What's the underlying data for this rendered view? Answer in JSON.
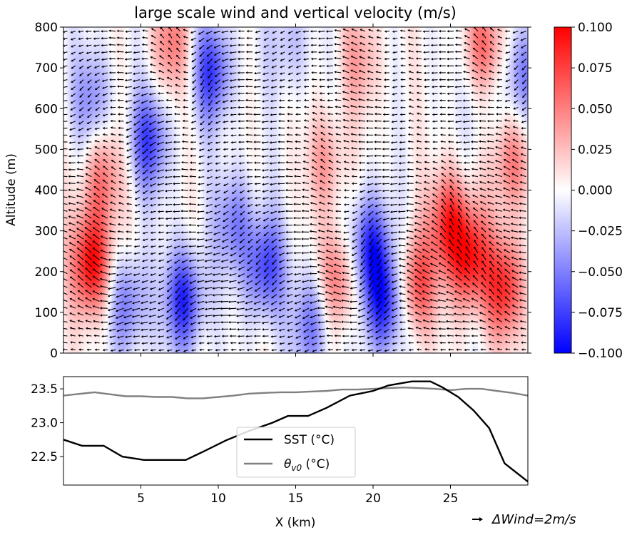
{
  "chart_data": [
    {
      "type": "heatmap",
      "title": "large scale wind and vertical velocity (m/s)",
      "ylabel": "Altitude (m)",
      "xlim": [
        0,
        30
      ],
      "ylim": [
        0,
        800
      ],
      "yticks": [
        0,
        100,
        200,
        300,
        400,
        500,
        600,
        700,
        800
      ],
      "xticks": [
        5,
        10,
        15,
        20,
        25
      ],
      "colorbar": {
        "colormap": "bwr",
        "vmin": -0.1,
        "vmax": 0.1,
        "ticks": [
          "0.100",
          "0.075",
          "0.050",
          "0.025",
          "0.000",
          "−0.025",
          "−0.050",
          "−0.075",
          "−0.100"
        ],
        "colors": {
          "low": "#0000ff",
          "mid": "#ffffff",
          "high": "#ff0000"
        }
      },
      "features": [
        {
          "x": 1.8,
          "z": 220,
          "w": 0.1
        },
        {
          "x": 2.5,
          "z": 430,
          "w": 0.055
        },
        {
          "x": 7.0,
          "z": 760,
          "w": 0.05
        },
        {
          "x": 9.6,
          "z": 690,
          "w": -0.075
        },
        {
          "x": 5.5,
          "z": 520,
          "w": -0.07
        },
        {
          "x": 4.2,
          "z": 120,
          "w": -0.055
        },
        {
          "x": 7.8,
          "z": 130,
          "w": -0.085
        },
        {
          "x": 13.0,
          "z": 210,
          "w": -0.075
        },
        {
          "x": 11.0,
          "z": 320,
          "w": -0.05
        },
        {
          "x": 16.0,
          "z": 70,
          "w": -0.055
        },
        {
          "x": 17.8,
          "z": 180,
          "w": 0.06
        },
        {
          "x": 17.0,
          "z": 470,
          "w": 0.04
        },
        {
          "x": 19.8,
          "z": 260,
          "w": -0.085
        },
        {
          "x": 20.7,
          "z": 120,
          "w": -0.085
        },
        {
          "x": 19.2,
          "z": 720,
          "w": 0.035
        },
        {
          "x": 22.8,
          "z": 170,
          "w": 0.07
        },
        {
          "x": 24.9,
          "z": 320,
          "w": 0.08
        },
        {
          "x": 26.3,
          "z": 230,
          "w": 0.09
        },
        {
          "x": 28.5,
          "z": 160,
          "w": 0.08
        },
        {
          "x": 27.3,
          "z": 750,
          "w": 0.06
        },
        {
          "x": 29.0,
          "z": 470,
          "w": 0.055
        },
        {
          "x": 1.8,
          "z": 620,
          "w": -0.045
        },
        {
          "x": 14.5,
          "z": 760,
          "w": -0.03
        },
        {
          "x": 27.0,
          "z": 620,
          "w": -0.02
        },
        {
          "x": 29.8,
          "z": 680,
          "w": -0.05
        }
      ],
      "arrow_scale_label": "ΔWind=2m/s"
    },
    {
      "type": "line",
      "xlabel": "X (km)",
      "xlim": [
        0,
        30
      ],
      "ylim": [
        22.08,
        23.68
      ],
      "yticks": [
        "22.5",
        "23.0",
        "23.5"
      ],
      "xticks": [
        "5",
        "10",
        "15",
        "20",
        "25"
      ],
      "legend_position": "lower center",
      "series": [
        {
          "name": "SST (°C)",
          "color": "#000000",
          "x": [
            0,
            1.2,
            2.6,
            3.8,
            5.2,
            6.5,
            7.9,
            9.0,
            10.5,
            12.0,
            13.5,
            14.5,
            15.8,
            17.0,
            18.5,
            20.0,
            21.0,
            22.5,
            23.7,
            24.5,
            25.5,
            26.5,
            27.5,
            28.5,
            30.0
          ],
          "y": [
            22.75,
            22.66,
            22.66,
            22.5,
            22.45,
            22.45,
            22.45,
            22.57,
            22.74,
            22.88,
            23.0,
            23.1,
            23.1,
            23.22,
            23.4,
            23.47,
            23.55,
            23.61,
            23.61,
            23.52,
            23.38,
            23.18,
            22.92,
            22.4,
            22.13
          ]
        },
        {
          "name": "θv0 (°C)",
          "name_base": "θ",
          "name_sub": "v0",
          "name_unit": " (°C)",
          "color": "#808080",
          "x": [
            0,
            0.8,
            2,
            3,
            4,
            5,
            6,
            7,
            8,
            9,
            10,
            11,
            12,
            13,
            14,
            15,
            16,
            17,
            18,
            19,
            20,
            21,
            22,
            23,
            24,
            25,
            26,
            27,
            28,
            29,
            30
          ],
          "y": [
            23.4,
            23.42,
            23.45,
            23.42,
            23.39,
            23.39,
            23.38,
            23.38,
            23.36,
            23.36,
            23.38,
            23.4,
            23.43,
            23.44,
            23.45,
            23.45,
            23.46,
            23.47,
            23.49,
            23.49,
            23.5,
            23.51,
            23.52,
            23.51,
            23.5,
            23.48,
            23.5,
            23.5,
            23.47,
            23.44,
            23.4
          ]
        }
      ]
    }
  ]
}
